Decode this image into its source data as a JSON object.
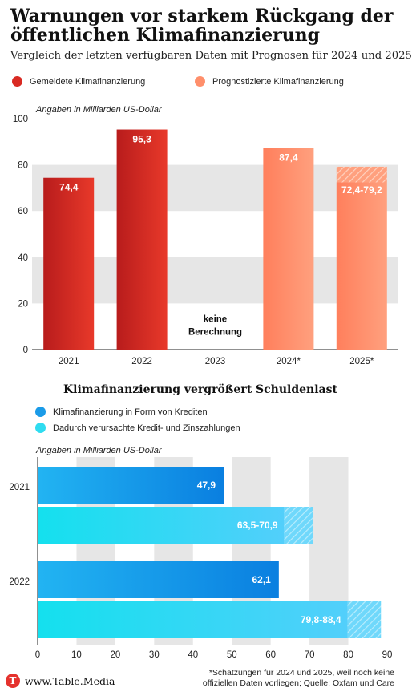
{
  "title": "Warnungen vor starkem Rückgang der öffentlichen Klimafinanzierung",
  "subtitle": "Vergleich der letzten verfügbaren Daten mit Prognosen für 2024 und 2025",
  "legend1": [
    {
      "label": "Gemeldete Klimafinanzierung",
      "color": "#d92a23"
    },
    {
      "label": "Prognostizierte Klimafinanzierung",
      "color": "#ff8f6b"
    }
  ],
  "unit_label": "Angaben in Milliarden US-Dollar",
  "section2_title": "Klimafinanzierung vergrößert Schuldenlast",
  "legend2": [
    {
      "label": "Klimafinanzierung in Form von Krediten",
      "color": "#1a9be8"
    },
    {
      "label": "Dadurch verursachte Kredit- und Zinszahlungen",
      "color": "#2fdcf0"
    }
  ],
  "footer_logo": "www.Table.Media",
  "footnote": "*Schätzungen für 2024 und 2025, weil noch keine offiziellen Daten vorliegen; Quelle: Oxfam und Care",
  "chart_data": [
    {
      "type": "bar",
      "orientation": "vertical",
      "ylim": [
        0,
        100
      ],
      "yticks": [
        0,
        20,
        40,
        60,
        80,
        100
      ],
      "categories": [
        "2021",
        "2022",
        "2023",
        "2024*",
        "2025*"
      ],
      "bars": [
        {
          "category": "2021",
          "value": 74.4,
          "label": "74,4",
          "kind": "reported"
        },
        {
          "category": "2022",
          "value": 95.3,
          "label": "95,3",
          "kind": "reported"
        },
        {
          "category": "2023",
          "value": null,
          "label": "keine Berechnung",
          "kind": "none"
        },
        {
          "category": "2024*",
          "value": 87.4,
          "label": "87,4",
          "kind": "forecast"
        },
        {
          "category": "2025*",
          "value": 72.4,
          "value_high": 79.2,
          "label": "72,4-79,2",
          "kind": "forecast-range"
        }
      ],
      "grid": "alternating horizontal bands"
    },
    {
      "type": "bar",
      "orientation": "horizontal",
      "xlim": [
        0,
        90
      ],
      "xticks": [
        0,
        10,
        20,
        30,
        40,
        50,
        60,
        70,
        80,
        90
      ],
      "categories": [
        "2021",
        "2022"
      ],
      "series": [
        {
          "name": "Klimafinanzierung in Form von Krediten",
          "values": [
            47.9,
            62.1
          ],
          "labels": [
            "47,9",
            "62,1"
          ]
        },
        {
          "name": "Dadurch verursachte Kredit- und Zinszahlungen",
          "low": [
            63.5,
            79.8
          ],
          "high": [
            70.9,
            88.4
          ],
          "labels": [
            "63,5-70,9",
            "79,8-88,4"
          ]
        }
      ],
      "grid": "alternating vertical bands"
    }
  ]
}
